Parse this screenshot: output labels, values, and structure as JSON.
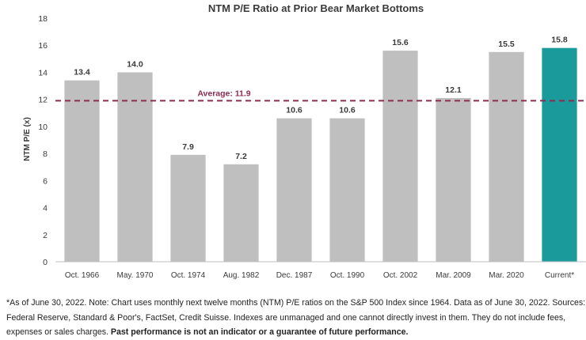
{
  "chart_data": {
    "type": "bar",
    "title": "NTM P/E Ratio at Prior Bear Market Bottoms",
    "ylabel": "NTM P/E (x)",
    "xlabel": "",
    "ylim": [
      0,
      18
    ],
    "yticks": [
      0,
      2,
      4,
      6,
      8,
      10,
      12,
      14,
      16,
      18
    ],
    "categories": [
      "Oct. 1966",
      "May. 1970",
      "Oct. 1974",
      "Aug. 1982",
      "Dec. 1987",
      "Oct. 1990",
      "Oct. 2002",
      "Mar. 2009",
      "Mar. 2020",
      "Current*"
    ],
    "values": [
      13.4,
      14.0,
      7.9,
      7.2,
      10.6,
      10.6,
      15.6,
      12.1,
      15.5,
      15.8
    ],
    "value_labels": [
      "13.4",
      "14.0",
      "7.9",
      "7.2",
      "10.6",
      "10.6",
      "15.6",
      "12.1",
      "15.5",
      "15.8"
    ],
    "bar_color": "#bfbfbf",
    "highlight_color": "#1b9a9c",
    "highlight_index": 9,
    "average": {
      "value": 11.9,
      "label": "Average: 11.9",
      "color": "#8b2d50"
    },
    "grid": false
  },
  "footnote": {
    "line1": "*As of June 30, 2022. Note: Chart uses monthly next twelve months (NTM) P/E ratios on the S&P 500 Index since 1964. Data as of June 30, 2022. Sources:",
    "line2": "Federal Reserve, Standard & Poor's, FactSet, Credit Suisse. Indexes are unmanaged and one cannot directly invest in them. They do not include fees,",
    "line3": "expenses or sales charges.",
    "line3_bold": "Past performance is not an indicator or a guarantee of future performance."
  }
}
